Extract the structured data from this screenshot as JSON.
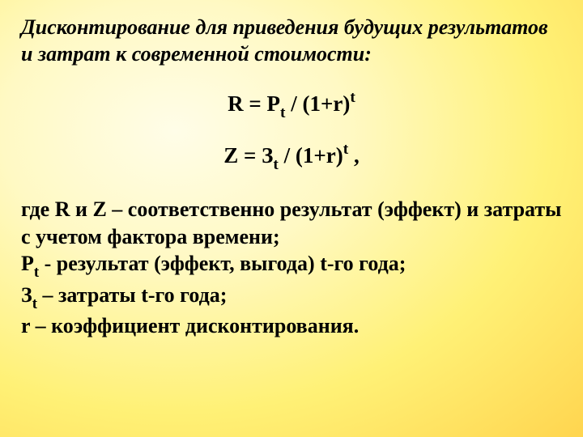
{
  "title": "Дисконтирование для приведения будущих результатов и затрат к современной стоимости:",
  "formula1": {
    "lhs": "R = P",
    "sub1": "t",
    "mid": " / (1+r)",
    "sup1": "t"
  },
  "formula2": {
    "lhs": "Z = З",
    "sub1": "t",
    "mid": " / (1+r)",
    "sup1": "t",
    "trail": " ,"
  },
  "defs": {
    "line1": "где R и Z – соответственно результат (эффект) и затраты с учетом фактора времени;",
    "line2a": "Р",
    "line2sub": "t",
    "line2b": " - результат (эффект, выгода) t-го года;",
    "line3a": "З",
    "line3sub": "t",
    "line3b": " – затраты t-го года;",
    "line4": "r – коэффициент дисконтирования."
  },
  "style": {
    "background_gradient": [
      "#fffde8",
      "#fff9c4",
      "#fff176",
      "#ffd54f"
    ],
    "text_color": "#000000",
    "font_family": "Times New Roman",
    "title_fontsize": 26,
    "formula_fontsize": 27,
    "body_fontsize": 26
  }
}
